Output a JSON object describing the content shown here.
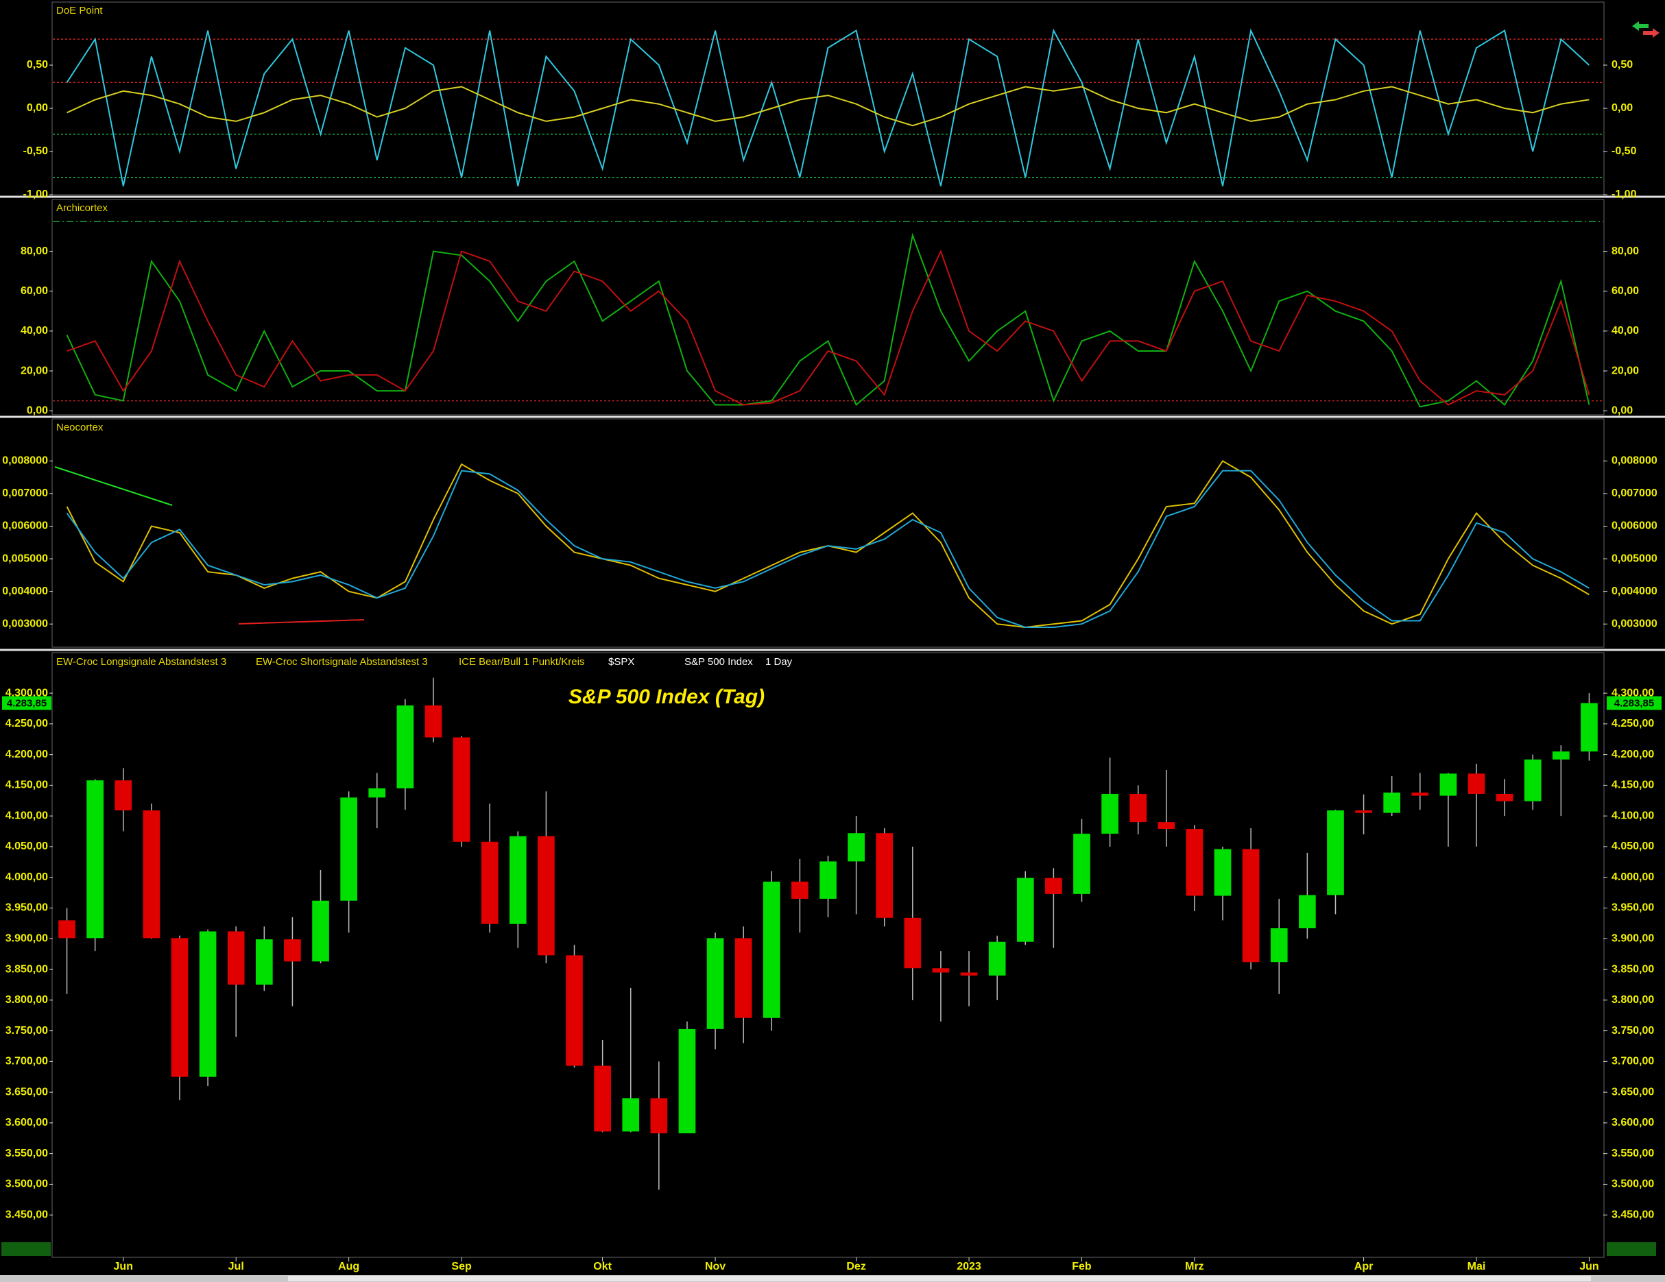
{
  "chart_data": [
    {
      "type": "line",
      "title": "DoE Point",
      "ylim": [
        -1.0,
        1.23
      ],
      "yticks": [
        {
          "value": -1.0,
          "label": "-1,00"
        },
        {
          "value": -0.5,
          "label": "-0,50"
        },
        {
          "value": 0,
          "label": "0,00"
        },
        {
          "value": 0.5,
          "label": "0,50"
        }
      ],
      "levels": [
        {
          "value": 0.8,
          "color": "#d02020"
        },
        {
          "value": 0.3,
          "color": "#d02020"
        },
        {
          "value": -0.3,
          "color": "#20b040"
        },
        {
          "value": -0.8,
          "color": "#20b040"
        }
      ],
      "series": [
        {
          "color": "#2fc8e0",
          "values": [
            0.3,
            0.8,
            -0.9,
            0.6,
            -0.5,
            0.9,
            -0.7,
            0.4,
            0.8,
            -0.3,
            0.9,
            -0.6,
            0.7,
            0.5,
            -0.8,
            0.9,
            -0.9,
            0.6,
            0.2,
            -0.7,
            0.8,
            0.5,
            -0.4,
            0.9,
            -0.6,
            0.3,
            -0.8,
            0.7,
            0.9,
            -0.5,
            0.4,
            -0.9,
            0.8,
            0.6,
            -0.8,
            0.9,
            0.3,
            -0.7,
            0.8,
            -0.4,
            0.6,
            -0.9,
            0.9,
            0.2,
            -0.6,
            0.8,
            0.5,
            -0.8,
            0.9,
            -0.3,
            0.7,
            0.9,
            -0.5,
            0.8,
            0.5
          ]
        },
        {
          "color": "#d8d020",
          "values": [
            -0.05,
            0.1,
            0.2,
            0.15,
            0.05,
            -0.1,
            -0.15,
            -0.05,
            0.1,
            0.15,
            0.05,
            -0.1,
            0.0,
            0.2,
            0.25,
            0.1,
            -0.05,
            -0.15,
            -0.1,
            0.0,
            0.1,
            0.05,
            -0.05,
            -0.15,
            -0.1,
            0.0,
            0.1,
            0.15,
            0.05,
            -0.1,
            -0.2,
            -0.1,
            0.05,
            0.15,
            0.25,
            0.2,
            0.25,
            0.1,
            0.0,
            -0.05,
            0.05,
            -0.05,
            -0.15,
            -0.1,
            0.05,
            0.1,
            0.2,
            0.25,
            0.15,
            0.05,
            0.1,
            0.0,
            -0.05,
            0.05,
            0.1
          ]
        }
      ]
    },
    {
      "type": "line",
      "title": "Archicortex",
      "ylim": [
        -2,
        106
      ],
      "yticks": [
        {
          "value": 0,
          "label": "0,00"
        },
        {
          "value": 20,
          "label": "20,00"
        },
        {
          "value": 40,
          "label": "40,00"
        },
        {
          "value": 60,
          "label": "60,00"
        },
        {
          "value": 80,
          "label": "80,00"
        }
      ],
      "levels": [
        {
          "value": 95,
          "color": "#20a040"
        },
        {
          "value": 5,
          "color": "#c02020"
        }
      ],
      "series": [
        {
          "color": "#10b010",
          "values": [
            38,
            8,
            5,
            75,
            55,
            18,
            10,
            40,
            12,
            20,
            20,
            10,
            10,
            80,
            78,
            65,
            45,
            65,
            75,
            45,
            55,
            65,
            20,
            3,
            3,
            5,
            25,
            35,
            3,
            15,
            88,
            50,
            25,
            40,
            50,
            5,
            35,
            40,
            30,
            30,
            75,
            50,
            20,
            55,
            60,
            50,
            45,
            30,
            2,
            5,
            15,
            3,
            25,
            65,
            3
          ]
        },
        {
          "color": "#c01010",
          "values": [
            30,
            35,
            10,
            30,
            75,
            45,
            18,
            12,
            35,
            15,
            18,
            18,
            10,
            30,
            80,
            75,
            55,
            50,
            70,
            65,
            50,
            60,
            45,
            10,
            3,
            4,
            10,
            30,
            25,
            8,
            50,
            80,
            40,
            30,
            45,
            40,
            15,
            35,
            35,
            30,
            60,
            65,
            35,
            30,
            58,
            55,
            50,
            40,
            15,
            3,
            10,
            8,
            20,
            55,
            8
          ]
        }
      ]
    },
    {
      "type": "line",
      "title": "Neocortex",
      "ylim": [
        0.00229,
        0.00929
      ],
      "yticks": [
        {
          "value": 0.003,
          "label": "0,003000"
        },
        {
          "value": 0.004,
          "label": "0,004000"
        },
        {
          "value": 0.005,
          "label": "0,005000"
        },
        {
          "value": 0.006,
          "label": "0,006000"
        },
        {
          "value": 0.007,
          "label": "0,007000"
        },
        {
          "value": 0.008,
          "label": "0,008000"
        }
      ],
      "levels": [],
      "series": [
        {
          "color": "#e0c000",
          "values": [
            0.0066,
            0.0049,
            0.0043,
            0.006,
            0.0058,
            0.0046,
            0.0045,
            0.0041,
            0.0044,
            0.0046,
            0.004,
            0.0038,
            0.0043,
            0.0062,
            0.0079,
            0.0074,
            0.007,
            0.006,
            0.0052,
            0.005,
            0.0048,
            0.0044,
            0.0042,
            0.004,
            0.0044,
            0.0048,
            0.0052,
            0.0054,
            0.0052,
            0.0058,
            0.0064,
            0.0055,
            0.0038,
            0.003,
            0.0029,
            0.003,
            0.0031,
            0.0036,
            0.005,
            0.0066,
            0.0067,
            0.008,
            0.0075,
            0.0065,
            0.0052,
            0.0042,
            0.0034,
            0.003,
            0.0033,
            0.005,
            0.0064,
            0.0055,
            0.0048,
            0.0044,
            0.0039
          ]
        },
        {
          "color": "#20a8d8",
          "values": [
            0.0064,
            0.0052,
            0.0044,
            0.0055,
            0.0059,
            0.0048,
            0.0045,
            0.0042,
            0.0043,
            0.0045,
            0.0042,
            0.0038,
            0.0041,
            0.0057,
            0.0077,
            0.0076,
            0.0071,
            0.0062,
            0.0054,
            0.005,
            0.0049,
            0.0046,
            0.0043,
            0.0041,
            0.0043,
            0.0047,
            0.0051,
            0.0054,
            0.0053,
            0.0056,
            0.0062,
            0.0058,
            0.0041,
            0.0032,
            0.0029,
            0.0029,
            0.003,
            0.0034,
            0.0046,
            0.0063,
            0.0066,
            0.0077,
            0.0077,
            0.0068,
            0.0055,
            0.0045,
            0.0037,
            0.0031,
            0.0031,
            0.0045,
            0.0061,
            0.0058,
            0.005,
            0.0046,
            0.0041
          ]
        }
      ]
    },
    {
      "type": "candlestick",
      "title": "S&P 500 Index (Tag)",
      "header_labels": [
        "EW-Croc Longsignale Abstandstest 3",
        "EW-Croc Shortsignale Abstandstest 3",
        "ICE Bear/Bull 1 Punkt/Kreis",
        "$SPX",
        "S&P 500 Index",
        "1 Day"
      ],
      "ylim": [
        3381,
        4366
      ],
      "yticks": [
        {
          "value": 3450,
          "label": "3.450,00"
        },
        {
          "value": 3500,
          "label": "3.500,00"
        },
        {
          "value": 3550,
          "label": "3.550,00"
        },
        {
          "value": 3600,
          "label": "3.600,00"
        },
        {
          "value": 3650,
          "label": "3.650,00"
        },
        {
          "value": 3700,
          "label": "3.700,00"
        },
        {
          "value": 3750,
          "label": "3.750,00"
        },
        {
          "value": 3800,
          "label": "3.800,00"
        },
        {
          "value": 3850,
          "label": "3.850,00"
        },
        {
          "value": 3900,
          "label": "3.900,00"
        },
        {
          "value": 3950,
          "label": "3.950,00"
        },
        {
          "value": 4000,
          "label": "4.000,00"
        },
        {
          "value": 4050,
          "label": "4.050,00"
        },
        {
          "value": 4100,
          "label": "4.100,00"
        },
        {
          "value": 4150,
          "label": "4.150,00"
        },
        {
          "value": 4200,
          "label": "4.200,00"
        },
        {
          "value": 4250,
          "label": "4.250,00"
        },
        {
          "value": 4300,
          "label": "4.300,00"
        }
      ],
      "last_price": {
        "value": 4283.85,
        "label": "4.283,85"
      },
      "up_color": "#00e000",
      "down_color": "#e00000",
      "categories": [
        null,
        null,
        "Jun",
        null,
        null,
        null,
        "Jul",
        null,
        null,
        null,
        "Aug",
        null,
        null,
        null,
        "Sep",
        null,
        null,
        null,
        null,
        "Okt",
        null,
        null,
        null,
        "Nov",
        null,
        null,
        null,
        null,
        "Dez",
        null,
        null,
        null,
        "2023",
        null,
        null,
        null,
        "Feb",
        null,
        null,
        null,
        "Mrz",
        null,
        null,
        null,
        null,
        null,
        "Apr",
        null,
        null,
        null,
        "Mai",
        null,
        null,
        null,
        "Jun"
      ],
      "open": [
        3930,
        3901,
        4158,
        4109,
        3901,
        3675,
        3912,
        3825,
        3899,
        3863,
        3962,
        4130,
        4145,
        4280,
        4228,
        4058,
        3924,
        4067,
        3873,
        3693,
        3586,
        3640,
        3583,
        3753,
        3901,
        3771,
        3993,
        3965,
        4026,
        4072,
        3934,
        3852,
        3845,
        3840,
        3895,
        3999,
        3973,
        4071,
        4136,
        4090,
        4079,
        3970,
        4046,
        3862,
        3917,
        3971,
        4109,
        4105,
        4138,
        4133,
        4169,
        4136,
        4124,
        4192,
        4205
      ],
      "high": [
        3950,
        4160,
        4178,
        4120,
        3905,
        3915,
        3920,
        3920,
        3935,
        4012,
        4140,
        4170,
        4290,
        4325,
        4230,
        4120,
        4075,
        4140,
        3890,
        3735,
        3820,
        3700,
        3765,
        3910,
        3920,
        4010,
        4030,
        4035,
        4100,
        4080,
        4050,
        3880,
        3880,
        3905,
        4010,
        4015,
        4095,
        4195,
        4150,
        4175,
        4085,
        4050,
        4080,
        3965,
        4040,
        4110,
        4135,
        4165,
        4170,
        4170,
        4185,
        4160,
        4200,
        4215,
        4300
      ],
      "low": [
        3810,
        3880,
        4075,
        3900,
        3637,
        3660,
        3740,
        3815,
        3790,
        3860,
        3910,
        4080,
        4110,
        4220,
        4050,
        3910,
        3885,
        3860,
        3690,
        3585,
        3585,
        3491,
        3590,
        3720,
        3730,
        3750,
        3910,
        3935,
        3940,
        3920,
        3800,
        3765,
        3790,
        3800,
        3890,
        3885,
        3960,
        4050,
        4070,
        4050,
        3945,
        3930,
        3850,
        3810,
        3900,
        3940,
        4070,
        4100,
        4110,
        4050,
        4050,
        4100,
        4110,
        4100,
        4190
      ],
      "close": [
        3901,
        4158,
        4109,
        3901,
        3675,
        3912,
        3825,
        3899,
        3863,
        3962,
        4130,
        4145,
        4280,
        4228,
        4058,
        3924,
        4067,
        3873,
        3693,
        3586,
        3640,
        3583,
        3753,
        3901,
        3771,
        3993,
        3965,
        4026,
        4072,
        3934,
        3852,
        3845,
        3840,
        3895,
        3999,
        3973,
        4071,
        4136,
        4090,
        4079,
        3970,
        4046,
        3862,
        3917,
        3971,
        4109,
        4105,
        4138,
        4133,
        4169,
        4136,
        4124,
        4192,
        4205,
        4283.85
      ]
    }
  ]
}
